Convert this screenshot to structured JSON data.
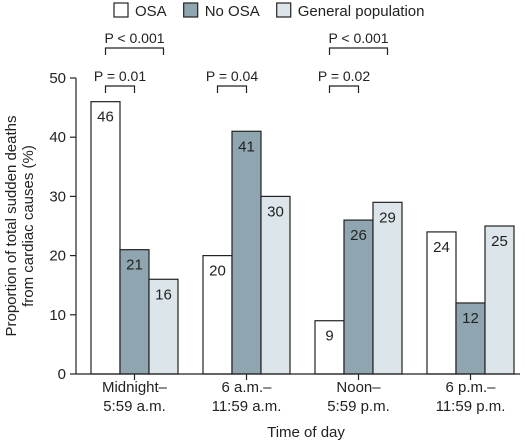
{
  "chart_data": {
    "type": "bar",
    "xlabel": "Time of day",
    "ylabel": [
      "Proportion of total sudden deaths",
      "from cardiac causes (%)"
    ],
    "ylim": [
      0,
      50
    ],
    "yticks": [
      0,
      10,
      20,
      30,
      40,
      50
    ],
    "categories": [
      [
        "Midnight–",
        "5:59 a.m."
      ],
      [
        "6 a.m.–",
        "11:59 a.m."
      ],
      [
        "Noon–",
        "5:59 p.m."
      ],
      [
        "6 p.m.–",
        "11:59 p.m."
      ]
    ],
    "series": [
      {
        "name": "OSA",
        "color": "#ffffff",
        "values": [
          46,
          20,
          9,
          24
        ]
      },
      {
        "name": "No OSA",
        "color": "#8fa6b0",
        "values": [
          21,
          41,
          26,
          12
        ]
      },
      {
        "name": "General population",
        "color": "#dce6ea",
        "values": [
          16,
          30,
          29,
          25
        ]
      }
    ],
    "legend_position": "top",
    "annotations": [
      {
        "text": "P < 0.001",
        "category": 0,
        "from_series": 0,
        "to_series": 2,
        "level": 2
      },
      {
        "text": "P = 0.01",
        "category": 0,
        "from_series": 0,
        "to_series": 1,
        "level": 1
      },
      {
        "text": "P = 0.04",
        "category": 1,
        "from_series": 0,
        "to_series": 1,
        "level": 1
      },
      {
        "text": "P < 0.001",
        "category": 2,
        "from_series": 0,
        "to_series": 2,
        "level": 2
      },
      {
        "text": "P = 0.02",
        "category": 2,
        "from_series": 0,
        "to_series": 1,
        "level": 1
      }
    ]
  }
}
